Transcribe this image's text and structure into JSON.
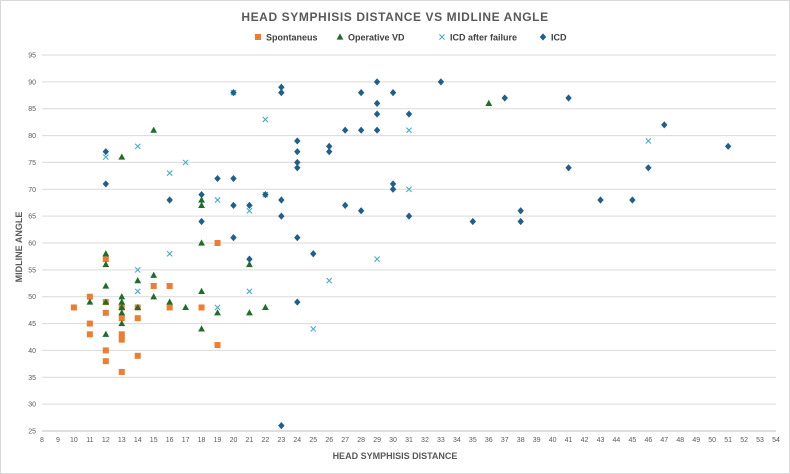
{
  "chart_data": {
    "type": "scatter",
    "title": "HEAD SYMPHISIS DISTANCE VS MIDLINE ANGLE",
    "xlabel": "HEAD SYMPHISIS  DISTANCE",
    "ylabel": "MIDLINE ANGLE",
    "xlim": [
      8,
      54
    ],
    "ylim": [
      25,
      95
    ],
    "x_ticks": [
      8,
      9,
      10,
      11,
      12,
      13,
      14,
      15,
      16,
      17,
      18,
      19,
      20,
      21,
      22,
      23,
      24,
      25,
      26,
      27,
      28,
      29,
      30,
      31,
      32,
      33,
      34,
      35,
      36,
      37,
      38,
      39,
      40,
      41,
      42,
      43,
      44,
      45,
      46,
      47,
      48,
      49,
      50,
      51,
      52,
      53,
      54
    ],
    "y_ticks": [
      25,
      30,
      35,
      40,
      45,
      50,
      55,
      60,
      65,
      70,
      75,
      80,
      85,
      90,
      95
    ],
    "grid": "horizontal",
    "legend_position": "top",
    "series": [
      {
        "name": "Spontaneus",
        "marker": "square",
        "color": "#ED7D31",
        "points": [
          [
            10,
            48
          ],
          [
            11,
            50
          ],
          [
            11,
            45
          ],
          [
            11,
            43
          ],
          [
            12,
            57
          ],
          [
            12,
            49
          ],
          [
            12,
            47
          ],
          [
            12,
            40
          ],
          [
            12,
            38
          ],
          [
            13,
            48
          ],
          [
            13,
            46
          ],
          [
            13,
            43
          ],
          [
            13,
            42
          ],
          [
            13,
            36
          ],
          [
            14,
            48
          ],
          [
            14,
            46
          ],
          [
            14,
            39
          ],
          [
            15,
            52
          ],
          [
            16,
            52
          ],
          [
            16,
            48
          ],
          [
            18,
            48
          ],
          [
            19,
            60
          ],
          [
            19,
            41
          ]
        ]
      },
      {
        "name": "Operative VD",
        "marker": "triangle",
        "color": "#1E6E2A",
        "points": [
          [
            11,
            49
          ],
          [
            12,
            58
          ],
          [
            12,
            56
          ],
          [
            12,
            52
          ],
          [
            12,
            49
          ],
          [
            12,
            43
          ],
          [
            13,
            76
          ],
          [
            13,
            50
          ],
          [
            13,
            49
          ],
          [
            13,
            48
          ],
          [
            13,
            47
          ],
          [
            13,
            45
          ],
          [
            14,
            53
          ],
          [
            14,
            48
          ],
          [
            15,
            81
          ],
          [
            15,
            54
          ],
          [
            15,
            50
          ],
          [
            16,
            49
          ],
          [
            17,
            48
          ],
          [
            18,
            68
          ],
          [
            18,
            67
          ],
          [
            18,
            60
          ],
          [
            18,
            51
          ],
          [
            18,
            44
          ],
          [
            19,
            47
          ],
          [
            21,
            56
          ],
          [
            21,
            47
          ],
          [
            22,
            48
          ],
          [
            36,
            86
          ]
        ]
      },
      {
        "name": "ICD after failure",
        "marker": "x",
        "color": "#4BACC6",
        "points": [
          [
            12,
            76
          ],
          [
            14,
            78
          ],
          [
            14,
            55
          ],
          [
            14,
            51
          ],
          [
            16,
            73
          ],
          [
            16,
            58
          ],
          [
            17,
            75
          ],
          [
            19,
            68
          ],
          [
            19,
            48
          ],
          [
            20,
            88
          ],
          [
            21,
            66
          ],
          [
            21,
            51
          ],
          [
            22,
            83
          ],
          [
            22,
            69
          ],
          [
            25,
            44
          ],
          [
            26,
            53
          ],
          [
            29,
            57
          ],
          [
            31,
            81
          ],
          [
            31,
            70
          ],
          [
            46,
            79
          ]
        ]
      },
      {
        "name": "ICD",
        "marker": "diamond",
        "color": "#1F5F8B",
        "points": [
          [
            12,
            77
          ],
          [
            12,
            71
          ],
          [
            16,
            68
          ],
          [
            18,
            69
          ],
          [
            18,
            64
          ],
          [
            19,
            72
          ],
          [
            20,
            88
          ],
          [
            20,
            72
          ],
          [
            20,
            67
          ],
          [
            20,
            61
          ],
          [
            21,
            67
          ],
          [
            21,
            57
          ],
          [
            22,
            69
          ],
          [
            23,
            89
          ],
          [
            23,
            88
          ],
          [
            23,
            68
          ],
          [
            23,
            65
          ],
          [
            23,
            26
          ],
          [
            24,
            79
          ],
          [
            24,
            77
          ],
          [
            24,
            75
          ],
          [
            24,
            74
          ],
          [
            24,
            61
          ],
          [
            24,
            49
          ],
          [
            25,
            58
          ],
          [
            26,
            78
          ],
          [
            26,
            77
          ],
          [
            27,
            81
          ],
          [
            27,
            67
          ],
          [
            28,
            88
          ],
          [
            28,
            81
          ],
          [
            28,
            66
          ],
          [
            29,
            90
          ],
          [
            29,
            86
          ],
          [
            29,
            84
          ],
          [
            29,
            81
          ],
          [
            30,
            88
          ],
          [
            30,
            71
          ],
          [
            30,
            70
          ],
          [
            31,
            84
          ],
          [
            31,
            65
          ],
          [
            33,
            90
          ],
          [
            35,
            64
          ],
          [
            37,
            87
          ],
          [
            38,
            66
          ],
          [
            38,
            64
          ],
          [
            41,
            87
          ],
          [
            41,
            74
          ],
          [
            43,
            68
          ],
          [
            45,
            68
          ],
          [
            46,
            74
          ],
          [
            47,
            82
          ],
          [
            51,
            78
          ]
        ]
      }
    ]
  }
}
